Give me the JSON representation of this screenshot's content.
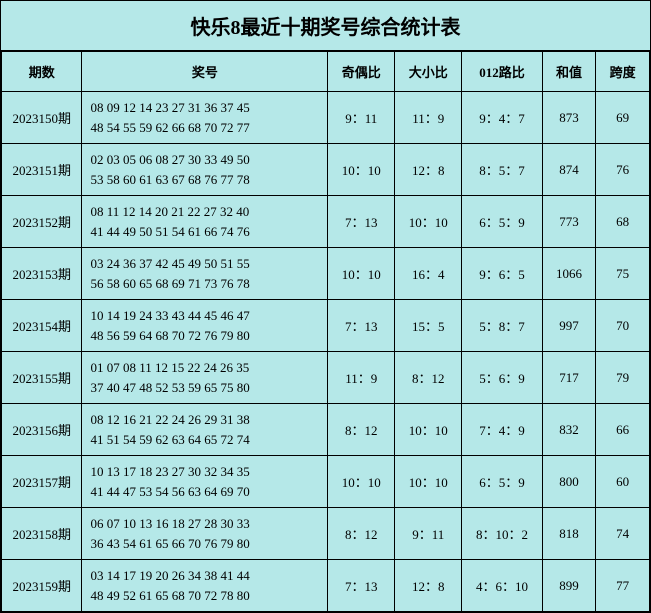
{
  "title": "快乐8最近十期奖号综合统计表",
  "colors": {
    "background": "#b5e8e8",
    "border": "#000000",
    "text": "#000000"
  },
  "headers": {
    "period": "期数",
    "numbers": "奖号",
    "odd_even": "奇偶比",
    "big_small": "大小比",
    "route012": "012路比",
    "sum": "和值",
    "span": "跨度"
  },
  "rows": [
    {
      "period": "2023150期",
      "line1": "08 09 12 14 23 27 31 36 37 45",
      "line2": "48 54 55 59 62 66 68 70 72 77",
      "odd_even": "9：11",
      "big_small": "11：9",
      "route012": "9：4：7",
      "sum": "873",
      "span": "69"
    },
    {
      "period": "2023151期",
      "line1": "02 03 05 06 08 27 30 33 49 50",
      "line2": "53 58 60 61 63 67 68 76 77 78",
      "odd_even": "10：10",
      "big_small": "12：8",
      "route012": "8：5：7",
      "sum": "874",
      "span": "76"
    },
    {
      "period": "2023152期",
      "line1": "08 11 12 14 20 21 22 27 32 40",
      "line2": "41 44 49 50 51 54 61 66 74 76",
      "odd_even": "7：13",
      "big_small": "10：10",
      "route012": "6：5：9",
      "sum": "773",
      "span": "68"
    },
    {
      "period": "2023153期",
      "line1": "03 24 36 37 42 45 49 50 51 55",
      "line2": "56 58 60 65 68 69 71 73 76 78",
      "odd_even": "10：10",
      "big_small": "16：4",
      "route012": "9：6：5",
      "sum": "1066",
      "span": "75"
    },
    {
      "period": "2023154期",
      "line1": "10 14 19 24 33 43 44 45 46 47",
      "line2": "48 56 59 64 68 70 72 76 79 80",
      "odd_even": "7：13",
      "big_small": "15：5",
      "route012": "5：8：7",
      "sum": "997",
      "span": "70"
    },
    {
      "period": "2023155期",
      "line1": "01 07 08 11 12 15 22 24 26 35",
      "line2": "37 40 47 48 52 53 59 65 75 80",
      "odd_even": "11：9",
      "big_small": "8：12",
      "route012": "5：6：9",
      "sum": "717",
      "span": "79"
    },
    {
      "period": "2023156期",
      "line1": "08 12 16 21 22 24 26 29 31 38",
      "line2": "41 51 54 59 62 63 64 65 72 74",
      "odd_even": "8：12",
      "big_small": "10：10",
      "route012": "7：4：9",
      "sum": "832",
      "span": "66"
    },
    {
      "period": "2023157期",
      "line1": "10 13 17 18 23 27 30 32 34 35",
      "line2": "41 44 47 53 54 56 63 64 69 70",
      "odd_even": "10：10",
      "big_small": "10：10",
      "route012": "6：5：9",
      "sum": "800",
      "span": "60"
    },
    {
      "period": "2023158期",
      "line1": "06 07 10 13 16 18 27 28 30 33",
      "line2": "36 43 54 61 65 66 70 76 79 80",
      "odd_even": "8：12",
      "big_small": "9：11",
      "route012": "8：10：2",
      "sum": "818",
      "span": "74"
    },
    {
      "period": "2023159期",
      "line1": "03 14 17 19 20 26 34 38 41 44",
      "line2": "48 49 52 61 65 68 70 72 78 80",
      "odd_even": "7：13",
      "big_small": "12：8",
      "route012": "4：6：10",
      "sum": "899",
      "span": "77"
    }
  ]
}
